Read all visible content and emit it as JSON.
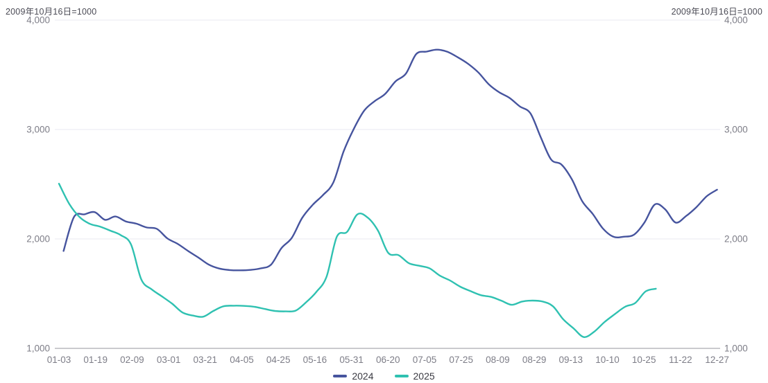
{
  "header": {
    "left_note": "2009年10月16日=1000",
    "right_note": "2009年10月16日=1000"
  },
  "chart_data": {
    "type": "line",
    "title": "",
    "axis_note": "2009年10月16日=1000",
    "x_tick_labels": [
      "01-03",
      "01-19",
      "02-09",
      "03-01",
      "03-21",
      "04-05",
      "04-25",
      "05-16",
      "05-31",
      "06-20",
      "07-05",
      "07-25",
      "08-09",
      "08-29",
      "09-13",
      "10-10",
      "10-25",
      "11-22",
      "12-27"
    ],
    "y_tick_labels": [
      "1,000",
      "2,000",
      "3,000",
      "4,000"
    ],
    "y_tick_values": [
      1000,
      2000,
      3000,
      4000
    ],
    "ylim": [
      1000,
      4000
    ],
    "grid": "horizontal",
    "legend_position": "bottom",
    "colors": {
      "grid_line": "#e9e9f0",
      "axis_line": "#96969e",
      "tick_label": "#7d7d87",
      "note_text": "#4b4b55"
    },
    "series": [
      {
        "name": "2024",
        "color": "#46549e",
        "t_start": 0.007,
        "t_end": 1.0,
        "values": [
          1890,
          2200,
          2225,
          2245,
          2175,
          2205,
          2160,
          2140,
          2105,
          2092,
          2005,
          1955,
          1890,
          1830,
          1765,
          1730,
          1716,
          1713,
          1717,
          1731,
          1765,
          1915,
          2010,
          2192,
          2310,
          2400,
          2515,
          2800,
          3010,
          3175,
          3260,
          3325,
          3440,
          3510,
          3690,
          3712,
          3730,
          3710,
          3660,
          3600,
          3520,
          3412,
          3340,
          3288,
          3210,
          3148,
          2930,
          2726,
          2680,
          2545,
          2345,
          2230,
          2095,
          2020,
          2020,
          2040,
          2150,
          2315,
          2270,
          2150,
          2208,
          2290,
          2390,
          2450
        ]
      },
      {
        "name": "2025",
        "color": "#2fc1b1",
        "t_start": 0.0,
        "t_end": 0.907,
        "values": [
          2505,
          2320,
          2200,
          2138,
          2112,
          2075,
          2035,
          1950,
          1630,
          1540,
          1475,
          1408,
          1328,
          1300,
          1289,
          1342,
          1385,
          1390,
          1388,
          1380,
          1360,
          1342,
          1338,
          1345,
          1420,
          1515,
          1655,
          2020,
          2065,
          2225,
          2195,
          2075,
          1872,
          1852,
          1778,
          1755,
          1732,
          1665,
          1620,
          1563,
          1523,
          1486,
          1470,
          1435,
          1398,
          1428,
          1437,
          1428,
          1385,
          1265,
          1183,
          1103,
          1152,
          1240,
          1312,
          1380,
          1415,
          1520,
          1545
        ]
      }
    ]
  }
}
